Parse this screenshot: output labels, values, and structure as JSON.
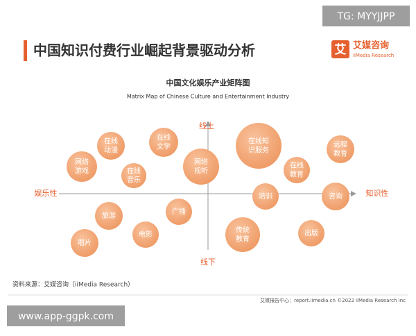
{
  "watermark_top": "TG: MYYJJPP",
  "header": {
    "title": "中国知识付费行业崛起背景驱动分析",
    "logo_mark": "艾",
    "logo_name": "艾媒咨询",
    "logo_sub": "iiMedia Research"
  },
  "diagram": {
    "title": "中国文化娱乐产业矩阵图",
    "subtitle": "Matrix Map of Chinese Culture and Entertainment Industry",
    "axis_top": "线上",
    "axis_bottom": "线下",
    "axis_left": "娱乐性",
    "axis_right": "知识性",
    "bubbles": [
      {
        "lines": [
          "网络",
          "游戏"
        ]
      },
      {
        "lines": [
          "在线",
          "动漫"
        ]
      },
      {
        "lines": [
          "在线",
          "文学"
        ]
      },
      {
        "lines": [
          "在线",
          "音乐"
        ]
      },
      {
        "lines": [
          "网络",
          "视听"
        ]
      },
      {
        "lines": [
          "在线知",
          "识服务"
        ]
      },
      {
        "lines": [
          "在线",
          "教育"
        ]
      },
      {
        "lines": [
          "远程",
          "教育"
        ]
      },
      {
        "lines": [
          "培训"
        ]
      },
      {
        "lines": [
          "咨询"
        ]
      },
      {
        "lines": [
          "旅游"
        ]
      },
      {
        "lines": [
          "广播"
        ]
      },
      {
        "lines": [
          "电影"
        ]
      },
      {
        "lines": [
          "唱片"
        ]
      },
      {
        "lines": [
          "传统",
          "教育"
        ]
      },
      {
        "lines": [
          "出版"
        ]
      }
    ]
  },
  "source": "资料来源：艾媒咨询（iiMedia Research）",
  "footer": "艾媒报告中心：report.iimedia.cn  ©2022  iiMedia Research Inc",
  "watermark_bottom": "www.app-ggpk.com"
}
